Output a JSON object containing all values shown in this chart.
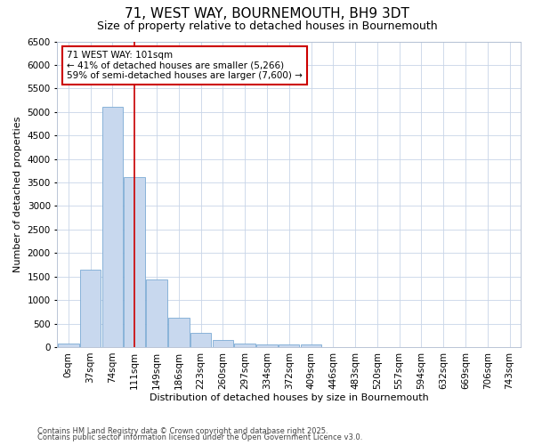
{
  "title1": "71, WEST WAY, BOURNEMOUTH, BH9 3DT",
  "title2": "Size of property relative to detached houses in Bournemouth",
  "xlabel": "Distribution of detached houses by size in Bournemouth",
  "ylabel": "Number of detached properties",
  "bar_color": "#c8d8ee",
  "bar_edge_color": "#7aaad4",
  "categories": [
    "0sqm",
    "37sqm",
    "74sqm",
    "111sqm",
    "149sqm",
    "186sqm",
    "223sqm",
    "260sqm",
    "297sqm",
    "334sqm",
    "372sqm",
    "409sqm",
    "446sqm",
    "483sqm",
    "520sqm",
    "557sqm",
    "594sqm",
    "632sqm",
    "669sqm",
    "706sqm",
    "743sqm"
  ],
  "values": [
    70,
    1650,
    5100,
    3620,
    1430,
    620,
    300,
    150,
    80,
    50,
    50,
    50,
    0,
    0,
    0,
    0,
    0,
    0,
    0,
    0,
    0
  ],
  "ylim": [
    0,
    6500
  ],
  "yticks": [
    0,
    500,
    1000,
    1500,
    2000,
    2500,
    3000,
    3500,
    4000,
    4500,
    5000,
    5500,
    6000,
    6500
  ],
  "vline_x": 3.0,
  "annotation_text": "71 WEST WAY: 101sqm\n← 41% of detached houses are smaller (5,266)\n59% of semi-detached houses are larger (7,600) →",
  "footnote1": "Contains HM Land Registry data © Crown copyright and database right 2025.",
  "footnote2": "Contains public sector information licensed under the Open Government Licence v3.0.",
  "background_color": "#ffffff",
  "plot_bg_color": "#ffffff",
  "grid_color": "#c8d4e8",
  "annotation_box_color": "#ffffff",
  "annotation_border_color": "#cc0000",
  "vline_color": "#cc0000",
  "title1_fontsize": 11,
  "title2_fontsize": 9,
  "xlabel_fontsize": 8,
  "ylabel_fontsize": 8,
  "tick_fontsize": 7.5,
  "annot_fontsize": 7.5,
  "footnote_fontsize": 6
}
